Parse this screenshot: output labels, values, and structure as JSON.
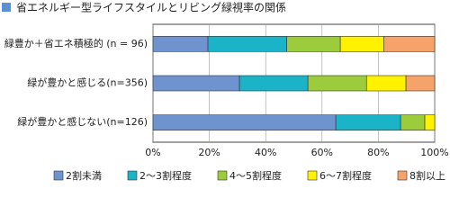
{
  "chart_data": {
    "type": "stacked-bar-horizontal",
    "title": "省エネルギー型ライフスタイルとリビング緑視率の関係",
    "categories": [
      "緑豊か＋省エネ積極的 (n = 96)",
      "緑が豊かと感じる(n=356)",
      "緑が豊かと感じない(n=126)"
    ],
    "series": [
      {
        "name": "2割未満",
        "color": "#6f93cf",
        "values": [
          19.5,
          30.7,
          64.9
        ]
      },
      {
        "name": "2～3割程度",
        "color": "#1ab3c7",
        "values": [
          28,
          24.3,
          23
        ]
      },
      {
        "name": "4～5割程度",
        "color": "#9ccc3b",
        "values": [
          19,
          20.8,
          8.6
        ]
      },
      {
        "name": "6～7割程度",
        "color": "#fff200",
        "values": [
          15.5,
          14,
          3.5
        ]
      },
      {
        "name": "8割以上",
        "color": "#f5a26b",
        "values": [
          18,
          10.2,
          0
        ]
      }
    ],
    "xlim": [
      0,
      100
    ],
    "xticks": [
      {
        "value": 0,
        "label": "0%"
      },
      {
        "value": 20,
        "label": "20%"
      },
      {
        "value": 40,
        "label": "40%"
      },
      {
        "value": 60,
        "label": "60%"
      },
      {
        "value": 80,
        "label": "80%"
      },
      {
        "value": 100,
        "label": "100%"
      }
    ],
    "grid": true,
    "legend": "bottom"
  }
}
